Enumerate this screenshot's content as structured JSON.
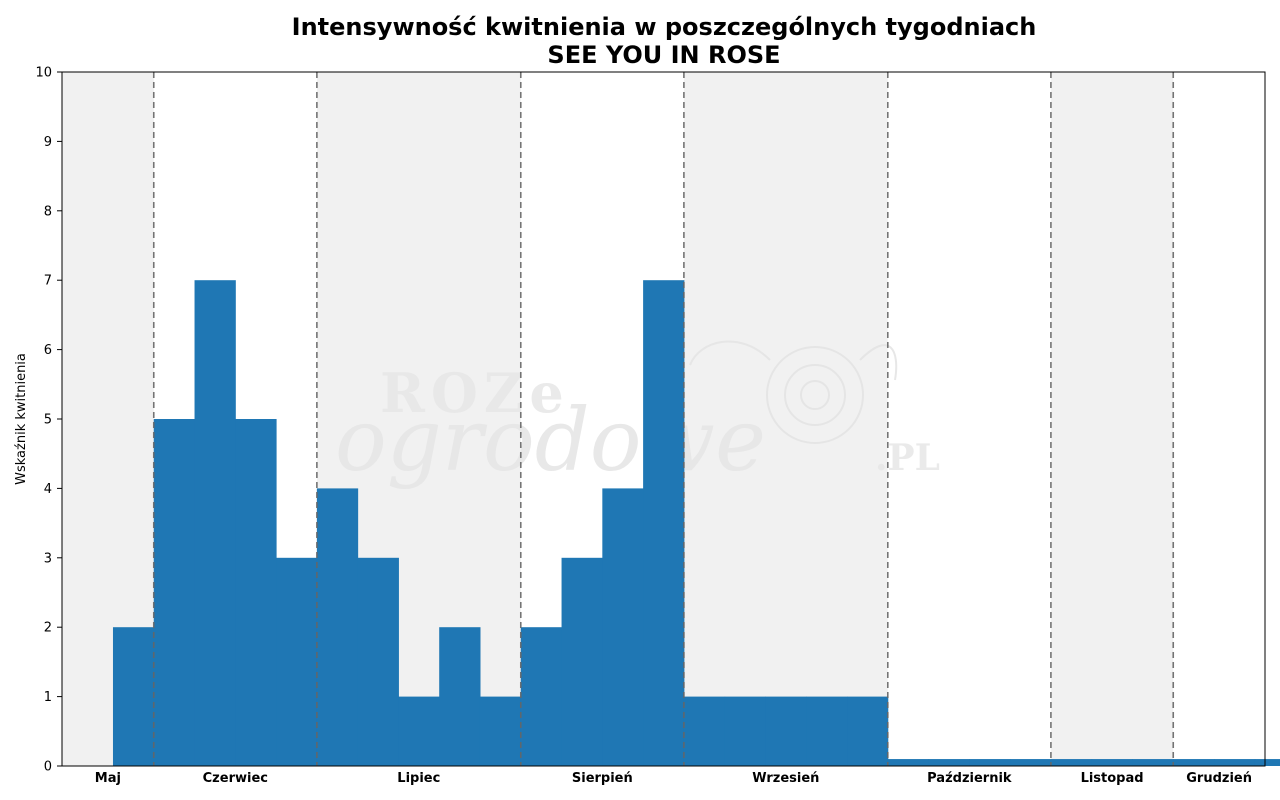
{
  "chart_data": {
    "type": "bar",
    "title": "Intensywność kwitnienia w poszczególnych tygodniach",
    "subtitle": "SEE YOU IN ROSE",
    "ylabel": "Wskaźnik kwitnienia",
    "xlabel": "",
    "ylim": [
      0,
      10
    ],
    "yticks": [
      "0",
      "1",
      "2",
      "3",
      "4",
      "5",
      "6",
      "7",
      "8",
      "9",
      "10"
    ],
    "weeks": [
      1,
      2,
      3,
      4,
      5,
      6,
      7,
      8,
      9,
      10,
      11,
      12,
      13,
      14,
      15,
      16,
      17,
      18,
      19,
      20,
      21,
      22,
      23,
      24,
      25,
      26,
      27,
      28,
      29,
      30,
      31,
      32
    ],
    "values": [
      0,
      2,
      5,
      7,
      5,
      3,
      4,
      3,
      1,
      2,
      1,
      2,
      3,
      4,
      7,
      1,
      1,
      1,
      1,
      1,
      0.1,
      0.1,
      0.1,
      0.1,
      0.1,
      0.1,
      0.1,
      0.1,
      0.1,
      0.1,
      0.1,
      0
    ],
    "months": [
      {
        "label": "Maj",
        "weeks": 2.25
      },
      {
        "label": "Czerwiec",
        "weeks": 4
      },
      {
        "label": "Lipiec",
        "weeks": 5
      },
      {
        "label": "Sierpień",
        "weeks": 4
      },
      {
        "label": "Wrzesień",
        "weeks": 5
      },
      {
        "label": "Październik",
        "weeks": 4
      },
      {
        "label": "Listopad",
        "weeks": 3
      },
      {
        "label": "Grudzień",
        "weeks": 2.25
      }
    ],
    "grid": false,
    "month_dividers": "dashed",
    "colors": {
      "bar": "#1f77b4",
      "shade": "#f1f1f1",
      "divider": "#666666"
    },
    "watermark": [
      "ROZe",
      "ogrodowe",
      ".PL"
    ]
  }
}
